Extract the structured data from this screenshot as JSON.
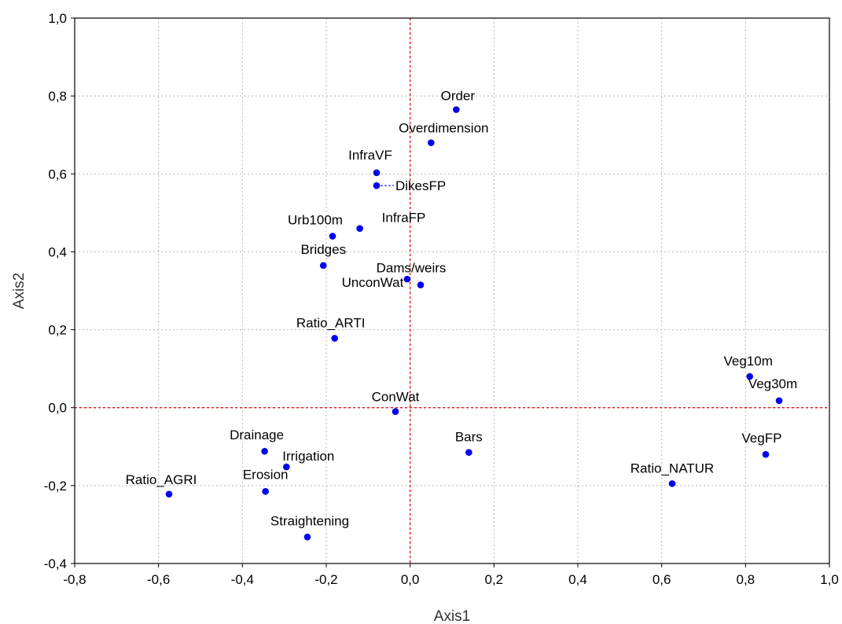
{
  "chart_data": {
    "type": "scatter",
    "xlabel": "Axis1",
    "ylabel": "Axis2",
    "xlim": [
      -0.8,
      1.0
    ],
    "ylim": [
      -0.4,
      1.0
    ],
    "x_ticks": [
      "-0,8",
      "-0,6",
      "-0,4",
      "-0,2",
      "0,0",
      "0,2",
      "0,4",
      "0,6",
      "0,8",
      "1,0"
    ],
    "y_ticks": [
      "-0,4",
      "-0,2",
      "0,0",
      "0,2",
      "0,4",
      "0,6",
      "0,8",
      "1,0"
    ],
    "grid": true,
    "reference_lines": {
      "x": 0.0,
      "y": 0.0,
      "color": "#e00000"
    },
    "marker_color": "#0000ee",
    "points": [
      {
        "name": "Order",
        "x": 0.11,
        "y": 0.765
      },
      {
        "name": "Overdimension",
        "x": 0.05,
        "y": 0.68
      },
      {
        "name": "InfraVF",
        "x": -0.08,
        "y": 0.603
      },
      {
        "name": "DikesFP",
        "x": -0.08,
        "y": 0.57
      },
      {
        "name": "InfraFP",
        "x": -0.12,
        "y": 0.46
      },
      {
        "name": "Urb100m",
        "x": -0.185,
        "y": 0.44
      },
      {
        "name": "Bridges",
        "x": -0.207,
        "y": 0.365
      },
      {
        "name": "UnconWat",
        "x": -0.007,
        "y": 0.33
      },
      {
        "name": "Dams/weirs",
        "x": 0.025,
        "y": 0.315
      },
      {
        "name": "Ratio_ARTI",
        "x": -0.18,
        "y": 0.178
      },
      {
        "name": "Veg10m",
        "x": 0.81,
        "y": 0.08
      },
      {
        "name": "Veg30m",
        "x": 0.88,
        "y": 0.018
      },
      {
        "name": "ConWat",
        "x": -0.035,
        "y": -0.01
      },
      {
        "name": "Drainage",
        "x": -0.347,
        "y": -0.112
      },
      {
        "name": "Irrigation",
        "x": -0.295,
        "y": -0.152
      },
      {
        "name": "Bars",
        "x": 0.14,
        "y": -0.115
      },
      {
        "name": "VegFP",
        "x": 0.848,
        "y": -0.12
      },
      {
        "name": "Ratio_NATUR",
        "x": 0.625,
        "y": -0.195
      },
      {
        "name": "Ratio_AGRI",
        "x": -0.575,
        "y": -0.222
      },
      {
        "name": "Erosion",
        "x": -0.345,
        "y": -0.215
      },
      {
        "name": "Straightening",
        "x": -0.245,
        "y": -0.332
      }
    ]
  }
}
